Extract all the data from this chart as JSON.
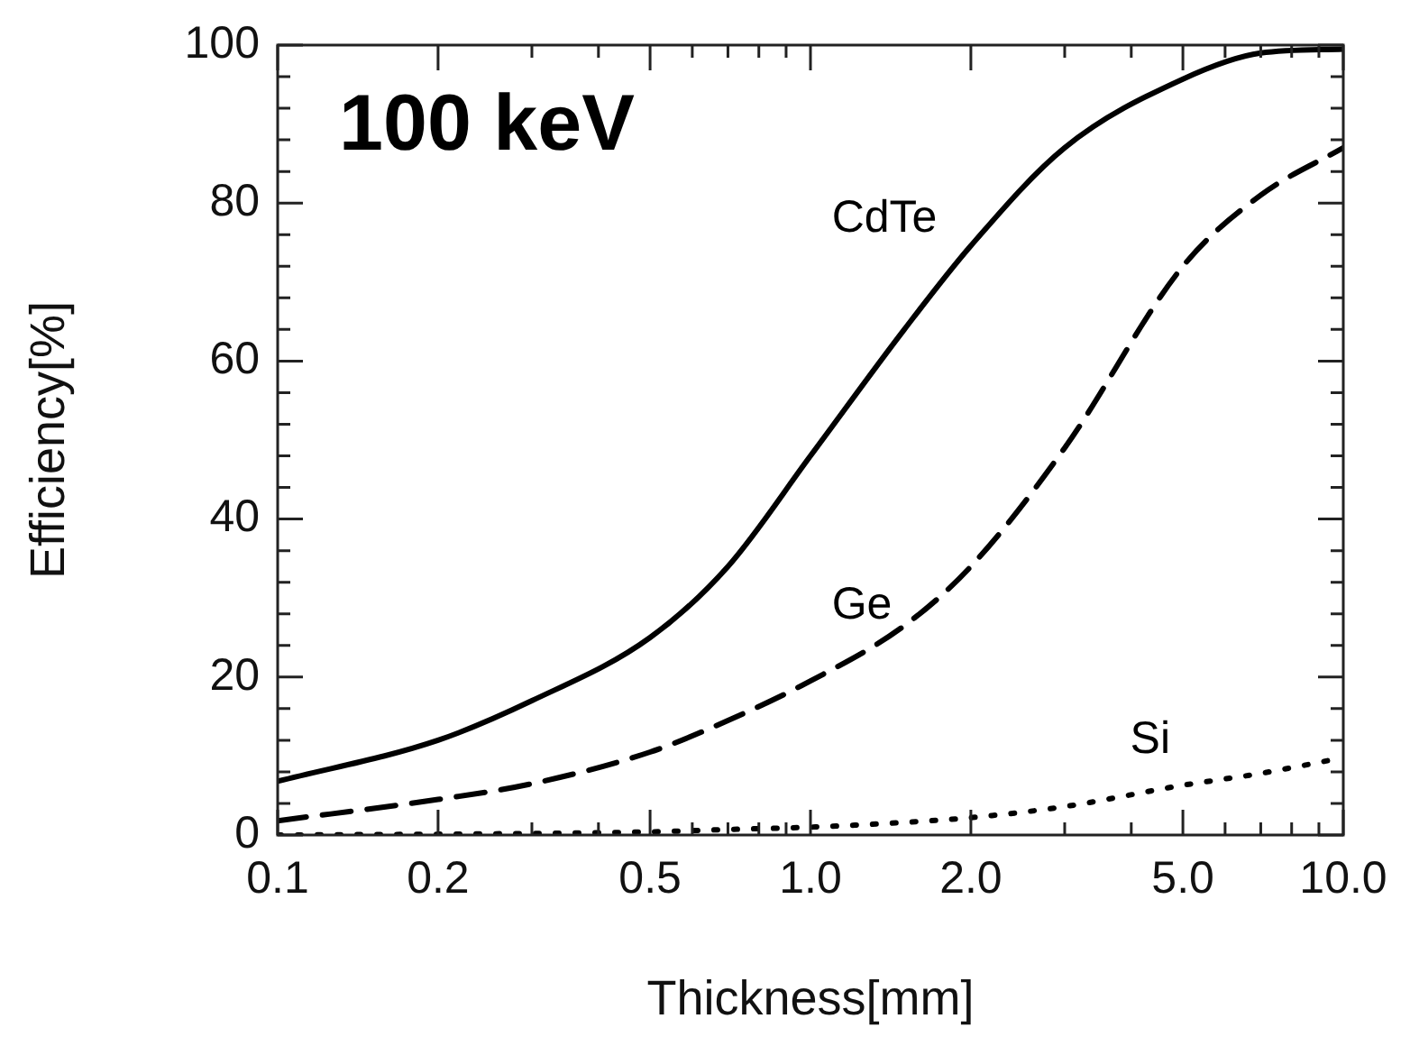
{
  "chart_data": {
    "type": "line",
    "annotations": [
      "100 keV"
    ],
    "xlabel": "Thickness[mm]",
    "ylabel": "Efficiency[%]",
    "log": "x",
    "grid": false,
    "legend": false,
    "marker": "none",
    "xlim": [
      0.1,
      10
    ],
    "ylim": [
      0,
      100
    ],
    "xticks": [
      0.1,
      0.2,
      {
        "value": 0.3,
        "label": null
      },
      {
        "value": 0.4,
        "label": null
      },
      0.5,
      {
        "value": 0.6,
        "label": null
      },
      {
        "value": 0.7,
        "label": null
      },
      {
        "value": 0.8,
        "label": null
      },
      {
        "value": 0.9,
        "label": null
      },
      {
        "value": 1,
        "label": "1.0"
      },
      {
        "value": 2,
        "label": "2.0"
      },
      {
        "value": 3,
        "label": null
      },
      {
        "value": 4,
        "label": null
      },
      {
        "value": 5,
        "label": "5.0"
      },
      {
        "value": 6,
        "label": null
      },
      {
        "value": 7,
        "label": null
      },
      {
        "value": 8,
        "label": null
      },
      {
        "value": 9,
        "label": null
      },
      {
        "value": 10,
        "label": "10.0"
      }
    ],
    "yticks": [
      0,
      {
        "value": 4,
        "label": null
      },
      {
        "value": 8,
        "label": null
      },
      {
        "value": 12,
        "label": null
      },
      {
        "value": 16,
        "label": null
      },
      20,
      {
        "value": 24,
        "label": null
      },
      {
        "value": 28,
        "label": null
      },
      {
        "value": 32,
        "label": null
      },
      {
        "value": 36,
        "label": null
      },
      40,
      {
        "value": 44,
        "label": null
      },
      {
        "value": 48,
        "label": null
      },
      {
        "value": 52,
        "label": null
      },
      {
        "value": 56,
        "label": null
      },
      60,
      {
        "value": 64,
        "label": null
      },
      {
        "value": 68,
        "label": null
      },
      {
        "value": 72,
        "label": null
      },
      {
        "value": 76,
        "label": null
      },
      80,
      {
        "value": 84,
        "label": null
      },
      {
        "value": 88,
        "label": null
      },
      {
        "value": 92,
        "label": null
      },
      {
        "value": 96,
        "label": null
      },
      100
    ],
    "x": [
      0.1,
      0.2,
      0.3,
      0.5,
      0.7,
      1,
      1.5,
      2,
      3,
      5,
      7,
      10
    ],
    "series": [
      {
        "name": "CdTe",
        "color": "#000000",
        "line_style": "solid",
        "values": [
          6.8,
          12,
          17,
          25,
          34,
          48,
          64,
          74.6,
          87,
          95.7,
          99,
          99.5
        ]
      },
      {
        "name": "Ge",
        "color": "#000000",
        "line_style": "dashed",
        "values": [
          1.8,
          4.5,
          6.5,
          10.5,
          14.5,
          19.5,
          26.5,
          34,
          49,
          72,
          81,
          87
        ]
      },
      {
        "name": "Si",
        "color": "#000000",
        "line_style": "dotted",
        "values": [
          0,
          0.1,
          0.2,
          0.4,
          0.7,
          1,
          1.6,
          2.2,
          3.6,
          6.3,
          7.8,
          9.8
        ]
      }
    ]
  }
}
